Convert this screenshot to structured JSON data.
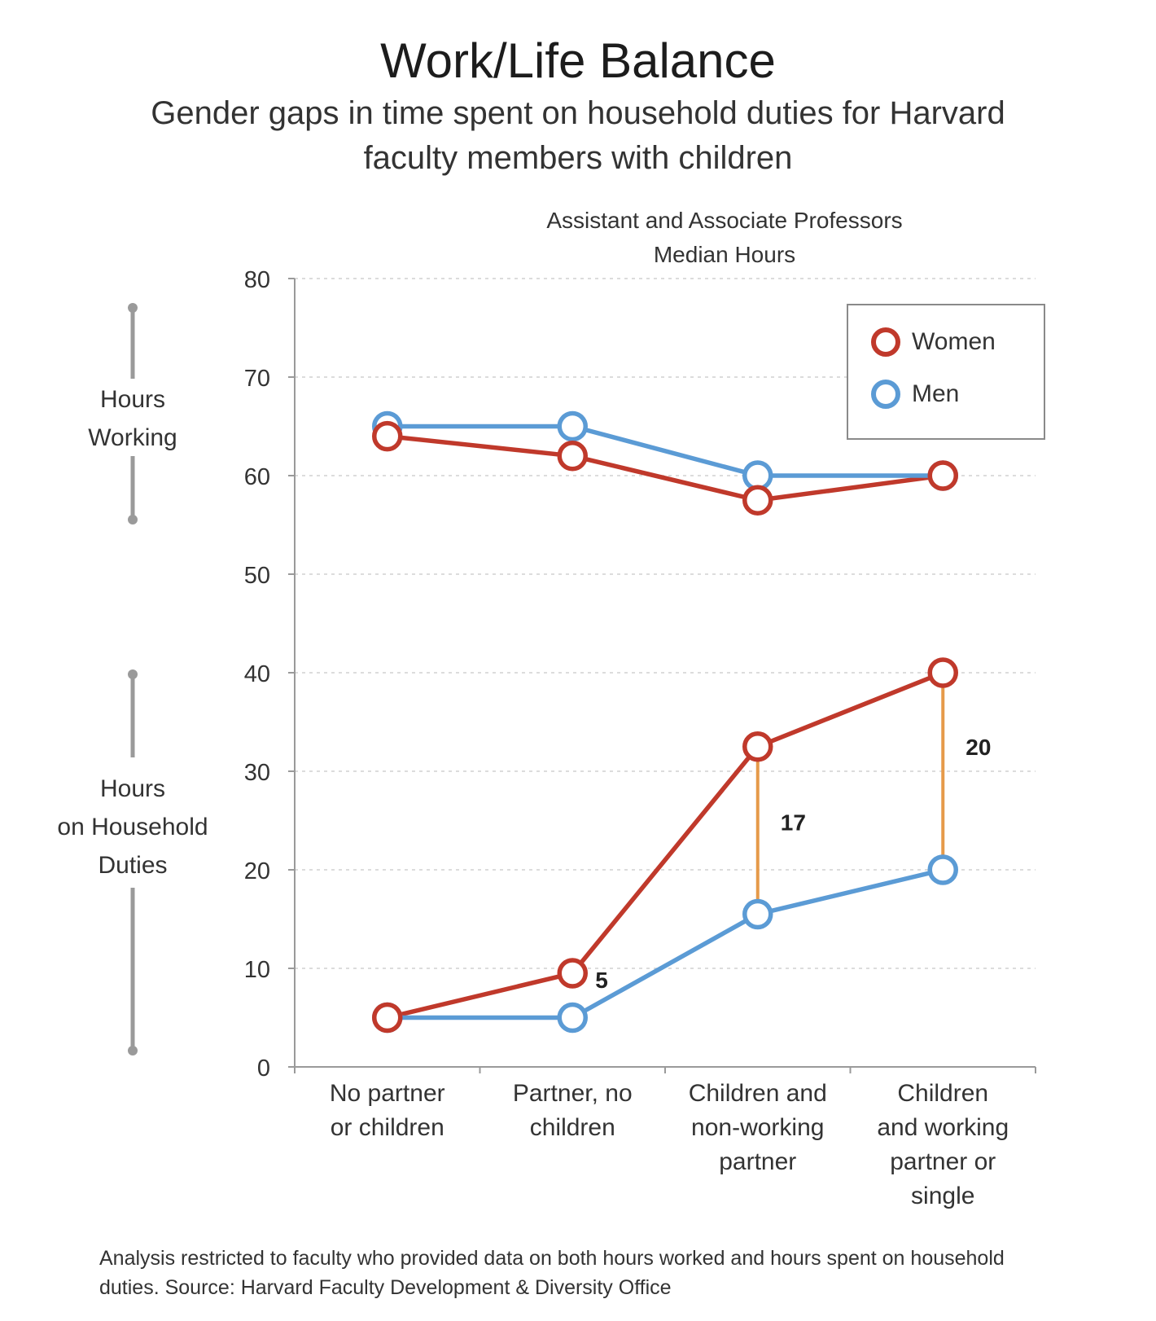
{
  "title": "Work/Life Balance",
  "subtitle": "Gender gaps in time spent on household duties for Harvard faculty members with children",
  "chart_title_line1": "Assistant and Associate Professors",
  "chart_title_line2": "Median Hours",
  "footnote": "Analysis restricted to faculty who provided data on both hours worked and hours spent on household duties. Source: Harvard Faculty Development & Diversity Office",
  "side_labels": {
    "working": [
      "Hours",
      "Working"
    ],
    "household": [
      "Hours",
      "on Household",
      "Duties"
    ]
  },
  "colors": {
    "women": "#c0392b",
    "men": "#5b9bd5",
    "gap": "#e69a4a",
    "axis": "#9a9a9a",
    "grid": "#d0d0d0"
  },
  "legend": {
    "women": "Women",
    "men": "Men"
  },
  "chart_data": {
    "type": "line",
    "categories": [
      [
        "No partner",
        "or children"
      ],
      [
        "Partner, no",
        "children"
      ],
      [
        "Children and",
        "non-working",
        "partner"
      ],
      [
        "Children",
        "and working",
        "partner or",
        "single"
      ]
    ],
    "ylim": [
      0,
      80
    ],
    "yticks": [
      0,
      10,
      20,
      30,
      40,
      50,
      60,
      70,
      80
    ],
    "grid": true,
    "legend_position": "top-right",
    "series": [
      {
        "name": "Women",
        "group": "Hours Working",
        "values": [
          64,
          62,
          57.5,
          60
        ]
      },
      {
        "name": "Men",
        "group": "Hours Working",
        "values": [
          65,
          65,
          60,
          60
        ]
      },
      {
        "name": "Women",
        "group": "Hours on Household Duties",
        "values": [
          5,
          9.5,
          32.5,
          40
        ]
      },
      {
        "name": "Men",
        "group": "Hours on Household Duties",
        "values": [
          5,
          5,
          15.5,
          20
        ]
      }
    ],
    "gap_annotations": [
      {
        "category_index": 1,
        "label": "5",
        "from": 5,
        "to": 9.5
      },
      {
        "category_index": 2,
        "label": "17",
        "from": 15.5,
        "to": 32.5
      },
      {
        "category_index": 3,
        "label": "20",
        "from": 20,
        "to": 40
      }
    ]
  }
}
